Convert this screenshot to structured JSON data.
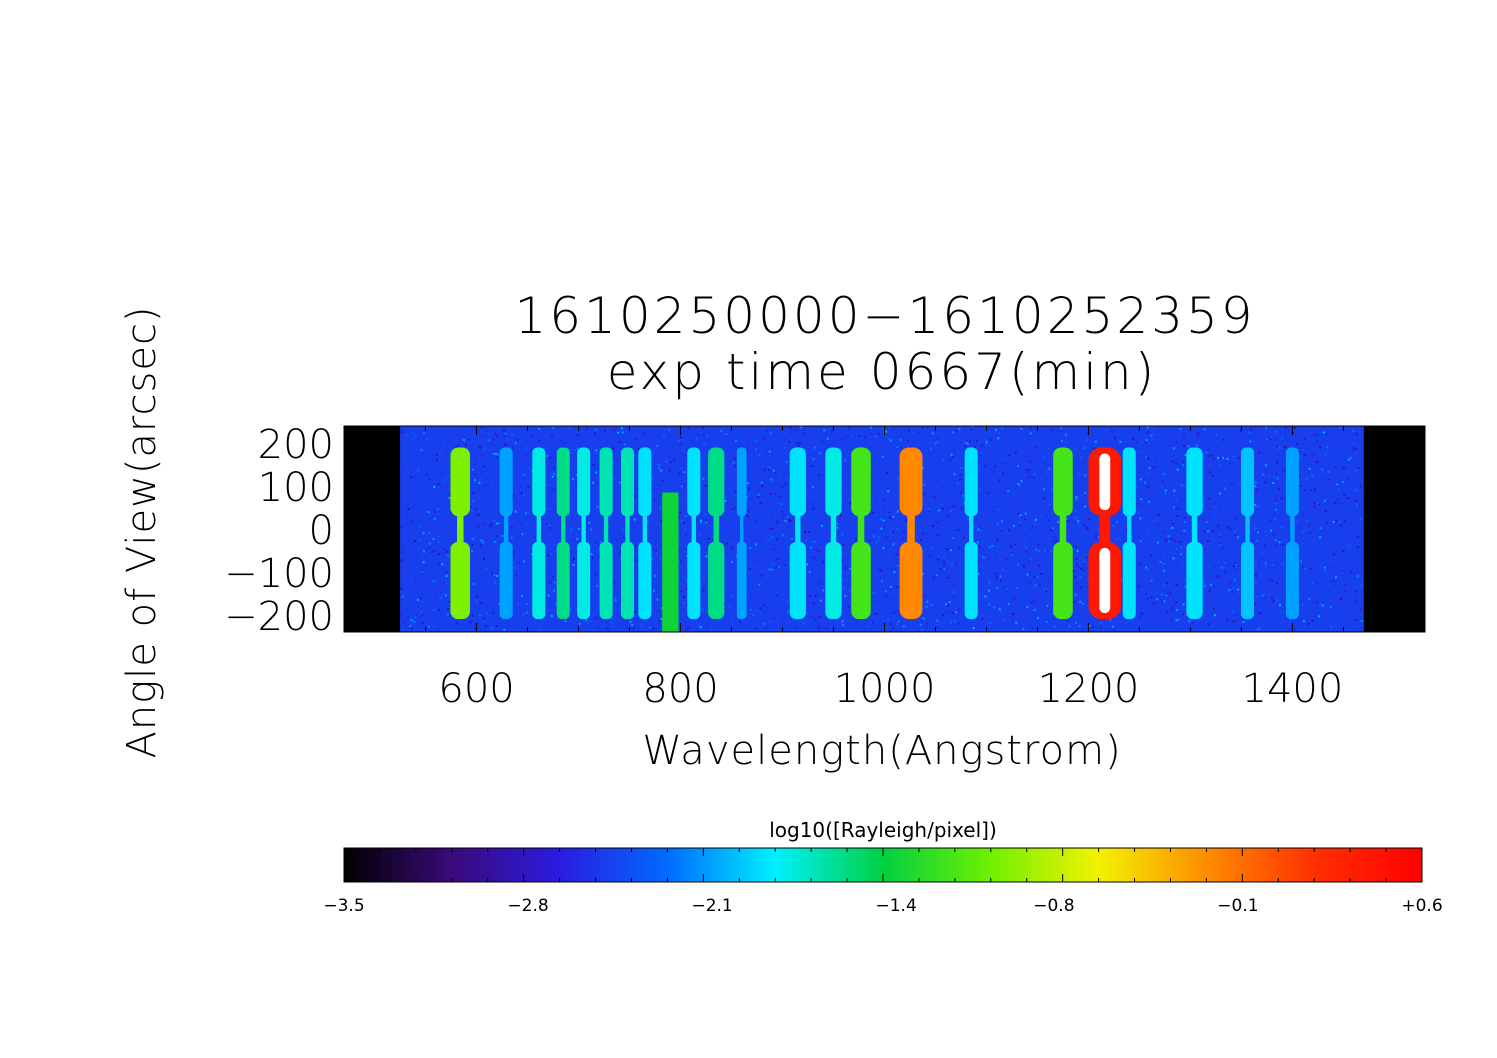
{
  "chart_data": {
    "type": "heatmap",
    "title": "1610250000−1610252359",
    "subtitle": "exp time 0667(min)",
    "xlabel": "Wavelength(Angstrom)",
    "ylabel": "Angle of View(arcsec)",
    "xlim": [
      470,
      1530
    ],
    "ylim": [
      -240,
      240
    ],
    "x_ticks": [
      600,
      800,
      1000,
      1200,
      1400
    ],
    "x_tick_labels": [
      "600",
      "800",
      "1000",
      "1200",
      "1400"
    ],
    "y_ticks": [
      200,
      100,
      0,
      -100,
      -200
    ],
    "y_tick_labels": [
      "200",
      "100",
      "0",
      "−100",
      "−200"
    ],
    "data_extent": [
      525,
      1470
    ],
    "background_value": -2.5,
    "emission_lines": [
      {
        "wavelength": 584,
        "width": 12,
        "value": -1.0,
        "gap": true
      },
      {
        "wavelength": 629,
        "width": 8,
        "value": -2.1,
        "gap": true
      },
      {
        "wavelength": 661,
        "width": 8,
        "value": -1.8,
        "gap": true
      },
      {
        "wavelength": 685,
        "width": 8,
        "value": -1.6,
        "gap": true
      },
      {
        "wavelength": 705,
        "width": 8,
        "value": -1.8,
        "gap": true
      },
      {
        "wavelength": 727,
        "width": 8,
        "value": -1.7,
        "gap": true
      },
      {
        "wavelength": 748,
        "width": 8,
        "value": -1.7,
        "gap": true
      },
      {
        "wavelength": 765,
        "width": 8,
        "value": -1.9,
        "gap": true
      },
      {
        "wavelength": 790,
        "width": 10,
        "value": -1.4,
        "gap": false
      },
      {
        "wavelength": 813,
        "width": 8,
        "value": -1.9,
        "gap": true
      },
      {
        "wavelength": 835,
        "width": 10,
        "value": -1.6,
        "gap": true
      },
      {
        "wavelength": 860,
        "width": 6,
        "value": -2.1,
        "gap": true
      },
      {
        "wavelength": 915,
        "width": 10,
        "value": -1.9,
        "gap": true
      },
      {
        "wavelength": 950,
        "width": 10,
        "value": -1.8,
        "gap": true
      },
      {
        "wavelength": 977,
        "width": 12,
        "value": -1.2,
        "gap": true
      },
      {
        "wavelength": 1026,
        "width": 14,
        "value": -0.2,
        "gap": true
      },
      {
        "wavelength": 1085,
        "width": 8,
        "value": -1.9,
        "gap": true
      },
      {
        "wavelength": 1175,
        "width": 12,
        "value": -1.2,
        "gap": true
      },
      {
        "wavelength": 1216,
        "width": 20,
        "value": 0.4,
        "gap": true
      },
      {
        "wavelength": 1240,
        "width": 8,
        "value": -1.9,
        "gap": true
      },
      {
        "wavelength": 1304,
        "width": 10,
        "value": -1.9,
        "gap": true
      },
      {
        "wavelength": 1356,
        "width": 8,
        "value": -2.0,
        "gap": true
      },
      {
        "wavelength": 1400,
        "width": 8,
        "value": -2.1,
        "gap": true
      }
    ],
    "colorbar": {
      "label": "log10([Rayleigh/pixel])",
      "min": -3.5,
      "max": 0.6,
      "ticks": [
        -3.5,
        -2.8,
        -2.1,
        -1.4,
        -0.8,
        -0.1,
        0.6
      ],
      "tick_labels": [
        "−3.5",
        "−2.8",
        "−2.1",
        "−1.4",
        "−0.8",
        "−0.1",
        "+0.6"
      ],
      "colors": [
        "#000000",
        "#3a0a7a",
        "#2a1ce0",
        "#006bff",
        "#00f0ff",
        "#00d040",
        "#70f000",
        "#f2f200",
        "#ff8c00",
        "#ff3000",
        "#ff0000"
      ]
    }
  }
}
